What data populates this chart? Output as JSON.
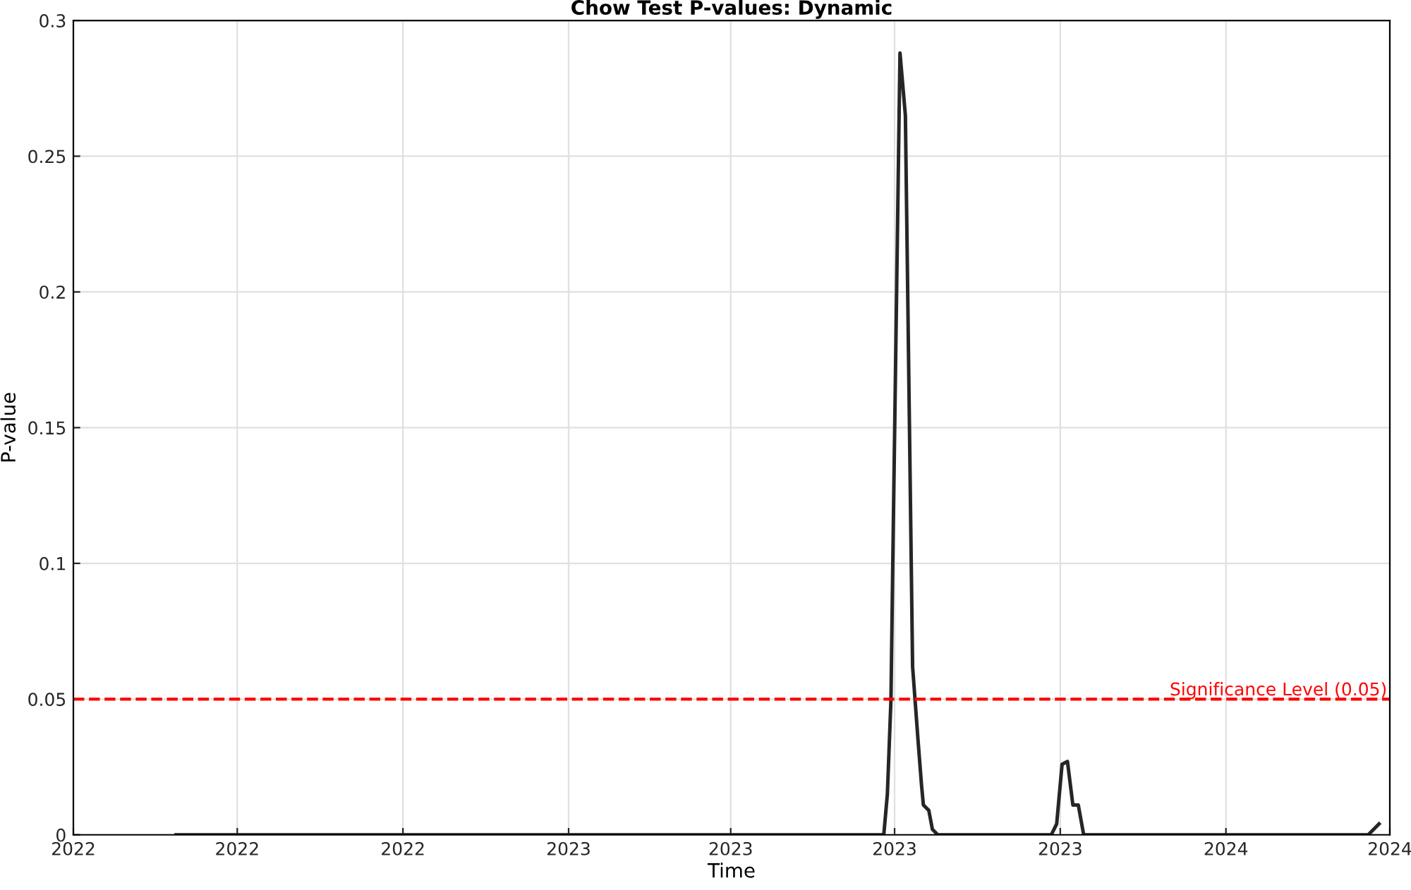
{
  "chart_data": {
    "type": "line",
    "title": "Chow Test P-values: Dynamic",
    "xlabel": "Time",
    "ylabel": "P-value",
    "x": [
      "2022-05-28",
      "2023-06-25",
      "2023-06-27",
      "2023-06-29",
      "2023-06-30",
      "2023-07-04",
      "2023-07-07",
      "2023-07-11",
      "2023-07-14",
      "2023-07-16",
      "2023-07-17",
      "2023-07-20",
      "2023-07-22",
      "2023-07-25",
      "2023-09-26",
      "2023-09-29",
      "2023-10-02",
      "2023-10-05",
      "2023-10-08",
      "2023-10-11",
      "2023-10-14",
      "2024-03-20",
      "2024-03-26"
    ],
    "series": [
      {
        "color": "#262626",
        "values": [
          0,
          0,
          0.015,
          0.05,
          0.1,
          0.288,
          0.265,
          0.062,
          0.035,
          0.018,
          0.011,
          0.009,
          0.002,
          0,
          0,
          0.004,
          0.026,
          0.027,
          0.011,
          0.011,
          0,
          0,
          0.004
        ]
      }
    ],
    "xlim": [
      "2022-04-01",
      "2024-04-01"
    ],
    "xticks": [
      {
        "value": "2022-04-01",
        "label": "2022"
      },
      {
        "value": "2022-07-01",
        "label": "2022"
      },
      {
        "value": "2022-10-01",
        "label": "2022"
      },
      {
        "value": "2023-01-01",
        "label": "2023"
      },
      {
        "value": "2023-04-01",
        "label": "2023"
      },
      {
        "value": "2023-07-01",
        "label": "2023"
      },
      {
        "value": "2023-10-01",
        "label": "2023"
      },
      {
        "value": "2024-01-01",
        "label": "2024"
      },
      {
        "value": "2024-04-01",
        "label": "2024"
      }
    ],
    "ylim": [
      0,
      0.3
    ],
    "yticks": [
      0,
      0.05,
      0.1,
      0.15,
      0.2,
      0.25,
      0.3
    ],
    "ref_lines": [
      {
        "axis": "y",
        "value": 0.05,
        "label": "Significance Level (0.05)",
        "color": "#ff0000",
        "line_style": "dashed"
      }
    ],
    "grid": true,
    "line_style": "solid",
    "marker": "none",
    "legend": false
  }
}
